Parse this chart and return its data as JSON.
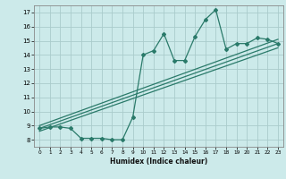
{
  "xlabel": "Humidex (Indice chaleur)",
  "ylabel": "",
  "background_color": "#cceaea",
  "grid_color": "#aacccc",
  "line_color": "#2a7a6a",
  "xlim": [
    -0.5,
    23.5
  ],
  "ylim": [
    7.5,
    17.5
  ],
  "xticks": [
    0,
    1,
    2,
    3,
    4,
    5,
    6,
    7,
    8,
    9,
    10,
    11,
    12,
    13,
    14,
    15,
    16,
    17,
    18,
    19,
    20,
    21,
    22,
    23
  ],
  "yticks": [
    8,
    9,
    10,
    11,
    12,
    13,
    14,
    15,
    16,
    17
  ],
  "line1_x": [
    0,
    1,
    2,
    3,
    4,
    5,
    6,
    7,
    8,
    9,
    10,
    11,
    12,
    13,
    14,
    15,
    16,
    17,
    18,
    19,
    20,
    21,
    22,
    23
  ],
  "line1_y": [
    8.8,
    8.9,
    8.9,
    8.8,
    8.1,
    8.1,
    8.1,
    8.0,
    8.0,
    9.6,
    14.0,
    14.3,
    15.5,
    13.6,
    13.6,
    15.3,
    16.5,
    17.2,
    14.4,
    14.8,
    14.8,
    15.2,
    15.1,
    14.8
  ],
  "line2_x": [
    0,
    23
  ],
  "line2_y": [
    8.8,
    14.8
  ],
  "line3_x": [
    0,
    23
  ],
  "line3_y": [
    9.0,
    15.1
  ],
  "line4_x": [
    0,
    23
  ],
  "line4_y": [
    8.6,
    14.5
  ],
  "marker": "D",
  "markersize": 2,
  "linewidth": 0.9
}
